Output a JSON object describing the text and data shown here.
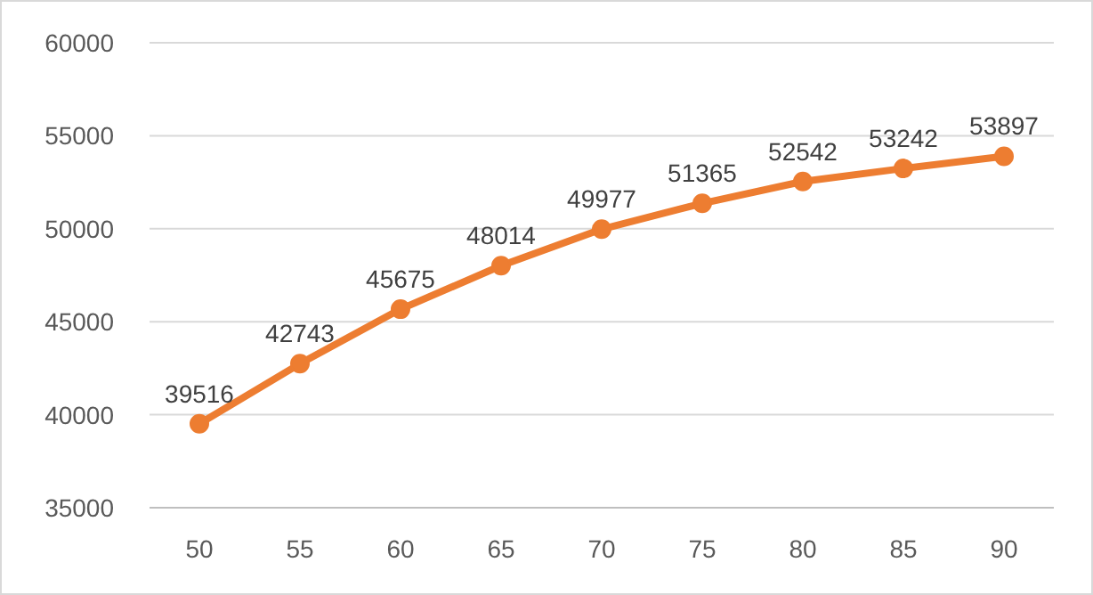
{
  "chart_data": {
    "type": "line",
    "categories": [
      "50",
      "55",
      "60",
      "65",
      "70",
      "75",
      "80",
      "85",
      "90"
    ],
    "series": [
      {
        "color": "#ed7d31",
        "values": [
          39516,
          42743,
          45675,
          48014,
          49977,
          51365,
          52542,
          53242,
          53897
        ]
      }
    ],
    "ylim": [
      35000,
      60000
    ],
    "yticks": [
      35000,
      40000,
      45000,
      50000,
      55000,
      60000
    ],
    "grid": "y",
    "marker": "circle",
    "line_style": "solid",
    "data_labels": true
  }
}
